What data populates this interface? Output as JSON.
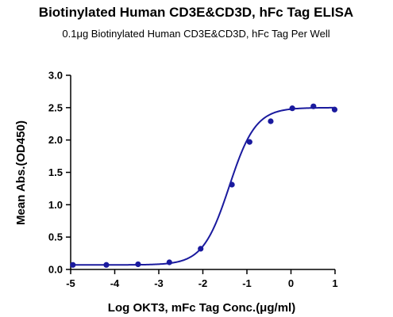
{
  "chart_data": {
    "type": "scatter",
    "title": "Biotinylated Human CD3E&CD3D, hFc Tag ELISA",
    "subtitle": "0.1μg Biotinylated Human CD3E&CD3D, hFc Tag Per Well",
    "xlabel": "Log OKT3, mFc Tag Conc.(μg/ml)",
    "ylabel": "Mean Abs.(OD450)",
    "xlim": [
      -5,
      1
    ],
    "ylim": [
      0,
      3.0
    ],
    "x_ticks": [
      -5,
      -4,
      -3,
      -2,
      -1,
      0,
      1
    ],
    "x_tick_labels": [
      "-5",
      "-4",
      "-3",
      "-2",
      "-1",
      "0",
      "1"
    ],
    "y_ticks": [
      0,
      0.5,
      1.0,
      1.5,
      2.0,
      2.5,
      3.0
    ],
    "y_tick_labels": [
      "0.0",
      "0.5",
      "1.0",
      "1.5",
      "2.0",
      "2.5",
      "3.0"
    ],
    "grid": false,
    "series": [
      {
        "x": [
          -4.95,
          -4.19,
          -3.47,
          -2.76,
          -2.05,
          -1.34,
          -0.94,
          -0.46,
          0.03,
          0.51,
          0.99
        ],
        "y": [
          0.07,
          0.07,
          0.08,
          0.11,
          0.32,
          1.31,
          1.97,
          2.29,
          2.49,
          2.52,
          2.47
        ],
        "fit": {
          "model": "4PL",
          "bottom": 0.07,
          "top": 2.5,
          "logEC50": -1.4,
          "hill": 1.45
        }
      }
    ],
    "colors": {
      "series": "#1a1a9e",
      "axis": "#000000"
    }
  }
}
